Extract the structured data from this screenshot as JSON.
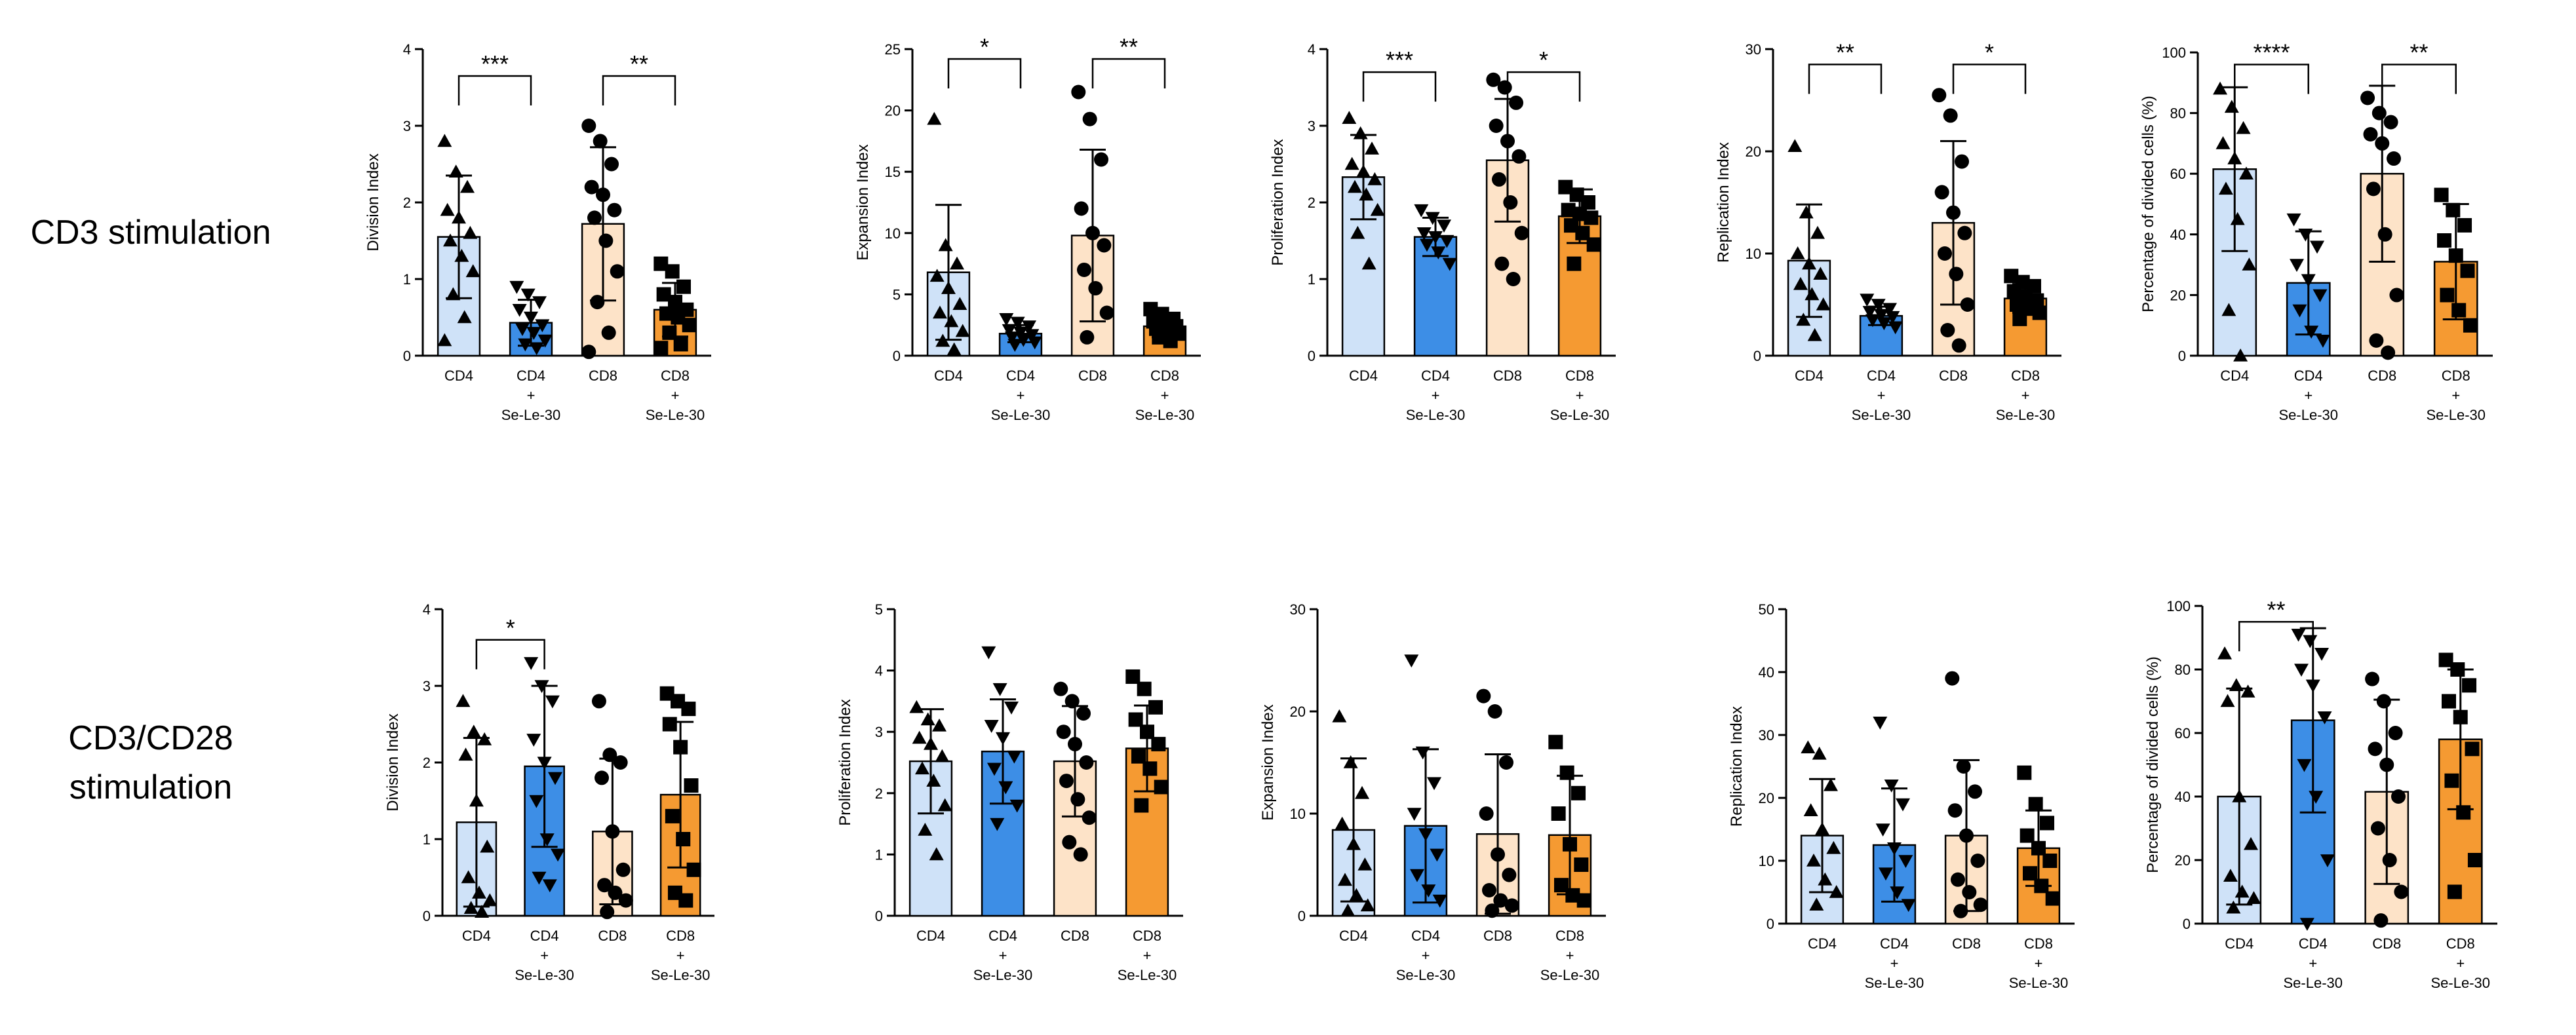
{
  "row_labels": {
    "row1": "CD3 stimulation",
    "row2_line1": "CD3/CD28",
    "row2_line2": "stimulation"
  },
  "colors": {
    "cd4": "#cfe2f8",
    "cd4_se": "#3d8ee6",
    "cd8": "#fde3c8",
    "cd8_se": "#f59a32"
  },
  "chart_data": [
    {
      "type": "bar",
      "panel": "r1c1",
      "ylabel": "Division Index",
      "ylim": [
        0,
        4
      ],
      "yticks": [
        "0",
        "1",
        "2",
        "3",
        "4"
      ],
      "categories": [
        "CD4",
        "CD4 + Se-Le-30",
        "CD8",
        "CD8 + Se-Le-30"
      ],
      "category_lines": [
        [
          "CD4"
        ],
        [
          "CD4",
          "+",
          "Se-Le-30"
        ],
        [
          "CD8"
        ],
        [
          "CD8",
          "+",
          "Se-Le-30"
        ]
      ],
      "values": [
        1.55,
        0.43,
        1.72,
        0.6
      ],
      "errors": [
        0.8,
        0.3,
        1.0,
        0.35
      ],
      "markers": [
        "triangle",
        "triangle-down",
        "circle",
        "square"
      ],
      "points": [
        [
          2.8,
          2.4,
          2.2,
          1.9,
          1.8,
          1.6,
          1.5,
          1.3,
          1.1,
          0.8,
          0.5,
          0.2
        ],
        [
          0.9,
          0.8,
          0.7,
          0.6,
          0.5,
          0.4,
          0.35,
          0.3,
          0.2,
          0.15,
          0.1
        ],
        [
          3.0,
          2.8,
          2.5,
          2.2,
          2.1,
          1.9,
          1.8,
          1.5,
          1.1,
          0.7,
          0.3,
          0.05
        ],
        [
          1.2,
          1.1,
          0.9,
          0.8,
          0.7,
          0.6,
          0.55,
          0.5,
          0.4,
          0.3,
          0.15,
          0.1
        ]
      ],
      "significance": [
        {
          "from": 0,
          "to": 1,
          "label": "***",
          "y": 3.65
        },
        {
          "from": 2,
          "to": 3,
          "label": "**",
          "y": 3.65
        }
      ]
    },
    {
      "type": "bar",
      "panel": "r1c2",
      "ylabel": "Expansion Index",
      "ylim": [
        0,
        25
      ],
      "yticks": [
        "0",
        "5",
        "10",
        "15",
        "20",
        "25"
      ],
      "categories": [
        "CD4",
        "CD4 + Se-Le-30",
        "CD8",
        "CD8 + Se-Le-30"
      ],
      "category_lines": [
        [
          "CD4"
        ],
        [
          "CD4",
          "+",
          "Se-Le-30"
        ],
        [
          "CD8"
        ],
        [
          "CD8",
          "+",
          "Se-Le-30"
        ]
      ],
      "values": [
        6.8,
        1.8,
        9.8,
        2.4
      ],
      "errors": [
        5.5,
        0.7,
        7.0,
        0.9
      ],
      "markers": [
        "triangle",
        "triangle-down",
        "circle",
        "square"
      ],
      "points": [
        [
          19.3,
          9.0,
          7.5,
          6.5,
          5.5,
          4.2,
          3.5,
          2.8,
          2.0,
          1.2,
          0.5
        ],
        [
          3.0,
          2.7,
          2.4,
          2.1,
          1.9,
          1.7,
          1.5,
          1.3,
          1.1,
          0.9
        ],
        [
          21.5,
          19.3,
          16.0,
          12.0,
          10.0,
          9.0,
          7.0,
          5.5,
          3.5,
          1.5
        ],
        [
          3.8,
          3.4,
          3.0,
          2.8,
          2.6,
          2.4,
          2.2,
          2.0,
          1.8,
          1.5,
          1.2
        ]
      ],
      "significance": [
        {
          "from": 0,
          "to": 1,
          "label": "*",
          "y": 24.2
        },
        {
          "from": 2,
          "to": 3,
          "label": "**",
          "y": 24.2
        }
      ]
    },
    {
      "type": "bar",
      "panel": "r1c3",
      "ylabel": "Proliferation Index",
      "ylim": [
        0,
        4
      ],
      "yticks": [
        "0",
        "1",
        "2",
        "3",
        "4"
      ],
      "categories": [
        "CD4",
        "CD4 + Se-Le-30",
        "CD8",
        "CD8 + Se-Le-30"
      ],
      "category_lines": [
        [
          "CD4"
        ],
        [
          "CD4",
          "+",
          "Se-Le-30"
        ],
        [
          "CD8"
        ],
        [
          "CD8",
          "+",
          "Se-Le-30"
        ]
      ],
      "values": [
        2.33,
        1.55,
        2.55,
        1.82
      ],
      "errors": [
        0.55,
        0.25,
        0.8,
        0.35
      ],
      "markers": [
        "triangle",
        "triangle-down",
        "circle",
        "square"
      ],
      "points": [
        [
          3.1,
          2.9,
          2.7,
          2.5,
          2.4,
          2.3,
          2.2,
          2.1,
          1.9,
          1.6,
          1.2
        ],
        [
          1.9,
          1.8,
          1.7,
          1.6,
          1.55,
          1.5,
          1.45,
          1.35,
          1.2
        ],
        [
          3.6,
          3.5,
          3.3,
          3.0,
          2.8,
          2.6,
          2.3,
          2.0,
          1.6,
          1.2,
          1.0
        ],
        [
          2.2,
          2.1,
          2.0,
          1.9,
          1.85,
          1.8,
          1.7,
          1.6,
          1.45,
          1.2
        ]
      ],
      "significance": [
        {
          "from": 0,
          "to": 1,
          "label": "***",
          "y": 3.7
        },
        {
          "from": 2,
          "to": 3,
          "label": "*",
          "y": 3.7
        }
      ]
    },
    {
      "type": "bar",
      "panel": "r1c4",
      "ylabel": "Replication Index",
      "ylim": [
        0,
        30
      ],
      "yticks": [
        "0",
        "10",
        "20",
        "30"
      ],
      "categories": [
        "CD4",
        "CD4 + Se-Le-30",
        "CD8",
        "CD8 + Se-Le-30"
      ],
      "category_lines": [
        [
          "CD4"
        ],
        [
          "CD4",
          "+",
          "Se-Le-30"
        ],
        [
          "CD8"
        ],
        [
          "CD8",
          "+",
          "Se-Le-30"
        ]
      ],
      "values": [
        9.3,
        3.9,
        13.0,
        5.6
      ],
      "errors": [
        5.5,
        0.9,
        8.0,
        1.4
      ],
      "markers": [
        "triangle",
        "triangle-down",
        "circle",
        "square"
      ],
      "points": [
        [
          20.5,
          14.0,
          12.0,
          10.0,
          9.0,
          8.0,
          7.0,
          6.0,
          5.0,
          3.5,
          2.0
        ],
        [
          5.5,
          5.0,
          4.6,
          4.3,
          4.0,
          3.8,
          3.5,
          3.2,
          2.8
        ],
        [
          25.5,
          23.5,
          19.0,
          16.0,
          14.0,
          12.0,
          10.0,
          8.0,
          5.0,
          2.5,
          1.0
        ],
        [
          7.8,
          7.2,
          6.8,
          6.3,
          5.8,
          5.4,
          5.0,
          4.6,
          4.2,
          3.6
        ]
      ],
      "significance": [
        {
          "from": 0,
          "to": 1,
          "label": "**",
          "y": 28.5
        },
        {
          "from": 2,
          "to": 3,
          "label": "*",
          "y": 28.5
        }
      ]
    },
    {
      "type": "bar",
      "panel": "r1c5",
      "ylabel": "Percentage of divided cells (%)",
      "ylim": [
        0,
        100
      ],
      "yticks": [
        "0",
        "20",
        "40",
        "60",
        "80",
        "100"
      ],
      "categories": [
        "CD4",
        "CD4 + Se-Le-30",
        "CD8",
        "CD8 + Se-Le-30"
      ],
      "category_lines": [
        [
          "CD4"
        ],
        [
          "CD4",
          "+",
          "Se-Le-30"
        ],
        [
          "CD8"
        ],
        [
          "CD8",
          "+",
          "Se-Le-30"
        ]
      ],
      "values": [
        61.5,
        24.0,
        60.0,
        31.0
      ],
      "errors": [
        27.0,
        17.0,
        29.0,
        19.0
      ],
      "markers": [
        "triangle",
        "triangle-down",
        "circle",
        "square"
      ],
      "points": [
        [
          88.0,
          82.0,
          75.0,
          70.0,
          65.0,
          60.0,
          55.0,
          45.0,
          30.0,
          15.0,
          0.0
        ],
        [
          45.0,
          40.0,
          36.0,
          30.0,
          25.0,
          20.0,
          15.0,
          8.0,
          5.0
        ],
        [
          85.0,
          80.0,
          77.0,
          73.0,
          70.0,
          65.0,
          55.0,
          40.0,
          20.0,
          5.0,
          1.0
        ],
        [
          53.0,
          48.0,
          43.0,
          38.0,
          33.0,
          28.0,
          20.0,
          15.0,
          10.0
        ]
      ],
      "significance": [
        {
          "from": 0,
          "to": 1,
          "label": "****",
          "y": 96.0
        },
        {
          "from": 2,
          "to": 3,
          "label": "**",
          "y": 96.0
        }
      ]
    },
    {
      "type": "bar",
      "panel": "r2c1",
      "ylabel": "Division Index",
      "ylim": [
        0,
        4
      ],
      "yticks": [
        "0",
        "1",
        "2",
        "3",
        "4"
      ],
      "categories": [
        "CD4",
        "CD4 + Se-Le-30",
        "CD8",
        "CD8 + Se-Le-30"
      ],
      "category_lines": [
        [
          "CD4"
        ],
        [
          "CD4",
          "+",
          "Se-Le-30"
        ],
        [
          "CD8"
        ],
        [
          "CD8",
          "+",
          "Se-Le-30"
        ]
      ],
      "values": [
        1.22,
        1.95,
        1.1,
        1.58
      ],
      "errors": [
        1.1,
        1.05,
        0.95,
        0.95
      ],
      "markers": [
        "triangle",
        "triangle-down",
        "circle",
        "square"
      ],
      "points": [
        [
          2.8,
          2.4,
          2.3,
          2.1,
          1.5,
          0.9,
          0.5,
          0.3,
          0.2,
          0.1,
          0.05
        ],
        [
          3.3,
          3.0,
          2.8,
          2.3,
          2.0,
          1.8,
          1.5,
          1.0,
          0.8,
          0.5,
          0.4
        ],
        [
          2.8,
          2.1,
          2.0,
          1.8,
          1.1,
          0.6,
          0.4,
          0.3,
          0.2,
          0.05
        ],
        [
          2.9,
          2.8,
          2.7,
          2.5,
          2.2,
          1.7,
          1.3,
          1.0,
          0.6,
          0.3,
          0.2
        ]
      ],
      "significance": [
        {
          "from": 0,
          "to": 1,
          "label": "*",
          "y": 3.6
        }
      ]
    },
    {
      "type": "bar",
      "panel": "r2c2",
      "ylabel": "Proliferation Index",
      "ylim": [
        0,
        5
      ],
      "yticks": [
        "0",
        "1",
        "2",
        "3",
        "4",
        "5"
      ],
      "categories": [
        "CD4",
        "CD4 + Se-Le-30",
        "CD8",
        "CD8 + Se-Le-30"
      ],
      "category_lines": [
        [
          "CD4"
        ],
        [
          "CD4",
          "+",
          "Se-Le-30"
        ],
        [
          "CD8"
        ],
        [
          "CD8",
          "+",
          "Se-Le-30"
        ]
      ],
      "values": [
        2.52,
        2.68,
        2.52,
        2.73
      ],
      "errors": [
        0.85,
        0.85,
        0.9,
        0.7
      ],
      "markers": [
        "triangle",
        "triangle-down",
        "circle",
        "square"
      ],
      "points": [
        [
          3.4,
          3.2,
          3.1,
          2.9,
          2.8,
          2.6,
          2.4,
          2.2,
          1.8,
          1.4,
          1.0
        ],
        [
          4.3,
          3.7,
          3.4,
          3.1,
          2.9,
          2.6,
          2.4,
          2.1,
          1.8,
          1.5
        ],
        [
          3.7,
          3.5,
          3.3,
          3.0,
          2.8,
          2.5,
          2.2,
          1.9,
          1.6,
          1.2,
          1.0
        ],
        [
          3.9,
          3.7,
          3.4,
          3.2,
          3.0,
          2.8,
          2.6,
          2.4,
          2.1,
          1.8
        ]
      ],
      "significance": []
    },
    {
      "type": "bar",
      "panel": "r2c3",
      "ylabel": "Expansion Index",
      "ylim": [
        0,
        30
      ],
      "yticks": [
        "0",
        "10",
        "20",
        "30"
      ],
      "categories": [
        "CD4",
        "CD4 + Se-Le-30",
        "CD8",
        "CD8 + Se-Le-30"
      ],
      "category_lines": [
        [
          "CD4"
        ],
        [
          "CD4",
          "+",
          "Se-Le-30"
        ],
        [
          "CD8"
        ],
        [
          "CD8",
          "+",
          "Se-Le-30"
        ]
      ],
      "values": [
        8.4,
        8.8,
        8.0,
        7.9
      ],
      "errors": [
        7.0,
        7.5,
        7.8,
        5.8
      ],
      "markers": [
        "triangle",
        "triangle-down",
        "circle",
        "square"
      ],
      "points": [
        [
          19.5,
          15.0,
          12.0,
          9.0,
          7.0,
          5.0,
          3.5,
          2.0,
          1.0,
          0.5
        ],
        [
          25.0,
          16.0,
          13.0,
          10.0,
          8.0,
          6.0,
          4.0,
          2.5,
          1.5
        ],
        [
          21.5,
          20.0,
          15.0,
          10.0,
          6.0,
          4.0,
          2.5,
          1.5,
          1.0,
          0.5
        ],
        [
          17.0,
          14.0,
          12.0,
          10.0,
          7.0,
          5.0,
          3.0,
          2.0,
          1.5
        ]
      ],
      "significance": []
    },
    {
      "type": "bar",
      "panel": "r2c4",
      "ylabel": "Replication Index",
      "ylim": [
        0,
        50
      ],
      "yticks": [
        "0",
        "10",
        "20",
        "30",
        "40",
        "50"
      ],
      "categories": [
        "CD4",
        "CD4 + Se-Le-30",
        "CD8",
        "CD8 + Se-Le-30"
      ],
      "category_lines": [
        [
          "CD4"
        ],
        [
          "CD4",
          "+",
          "Se-Le-30"
        ],
        [
          "CD8"
        ],
        [
          "CD8",
          "+",
          "Se-Le-30"
        ]
      ],
      "values": [
        14.0,
        12.5,
        14.0,
        12.0
      ],
      "errors": [
        9.0,
        9.0,
        12.0,
        6.0
      ],
      "markers": [
        "triangle",
        "triangle-down",
        "circle",
        "square"
      ],
      "points": [
        [
          28.0,
          27.0,
          22.0,
          18.0,
          15.0,
          12.0,
          10.0,
          7.0,
          5.0,
          3.0
        ],
        [
          32.0,
          22.0,
          19.0,
          15.0,
          12.0,
          10.0,
          8.0,
          5.0,
          3.0
        ],
        [
          39.0,
          25.0,
          21.0,
          18.0,
          14.0,
          10.0,
          7.0,
          5.0,
          3.0,
          2.0
        ],
        [
          24.0,
          19.0,
          16.0,
          14.0,
          12.0,
          10.0,
          8.0,
          6.0,
          4.0
        ]
      ],
      "significance": []
    },
    {
      "type": "bar",
      "panel": "r2c5",
      "ylabel": "Percentage of divided cells (%)",
      "ylim": [
        0,
        100
      ],
      "yticks": [
        "0",
        "20",
        "40",
        "60",
        "80",
        "100"
      ],
      "categories": [
        "CD4",
        "CD4 + Se-Le-30",
        "CD8",
        "CD8 + Se-Le-30"
      ],
      "category_lines": [
        [
          "CD4"
        ],
        [
          "CD4",
          "+",
          "Se-Le-30"
        ],
        [
          "CD8"
        ],
        [
          "CD8",
          "+",
          "Se-Le-30"
        ]
      ],
      "values": [
        40.0,
        64.0,
        41.5,
        58.0
      ],
      "errors": [
        34.0,
        29.0,
        29.0,
        22.0
      ],
      "markers": [
        "triangle",
        "triangle-down",
        "circle",
        "square"
      ],
      "points": [
        [
          85.0,
          75.0,
          73.0,
          70.0,
          40.0,
          25.0,
          15.0,
          10.0,
          8.0,
          5.0
        ],
        [
          91.0,
          89.0,
          85.0,
          80.0,
          75.0,
          65.0,
          50.0,
          40.0,
          20.0,
          0.0
        ],
        [
          77.0,
          70.0,
          60.0,
          55.0,
          50.0,
          40.0,
          30.0,
          20.0,
          10.0,
          1.0
        ],
        [
          83.0,
          80.0,
          75.0,
          70.0,
          65.0,
          55.0,
          45.0,
          35.0,
          20.0,
          10.0
        ]
      ],
      "significance": [
        {
          "from": 0,
          "to": 1,
          "label": "**",
          "y": 95.0
        }
      ]
    }
  ]
}
